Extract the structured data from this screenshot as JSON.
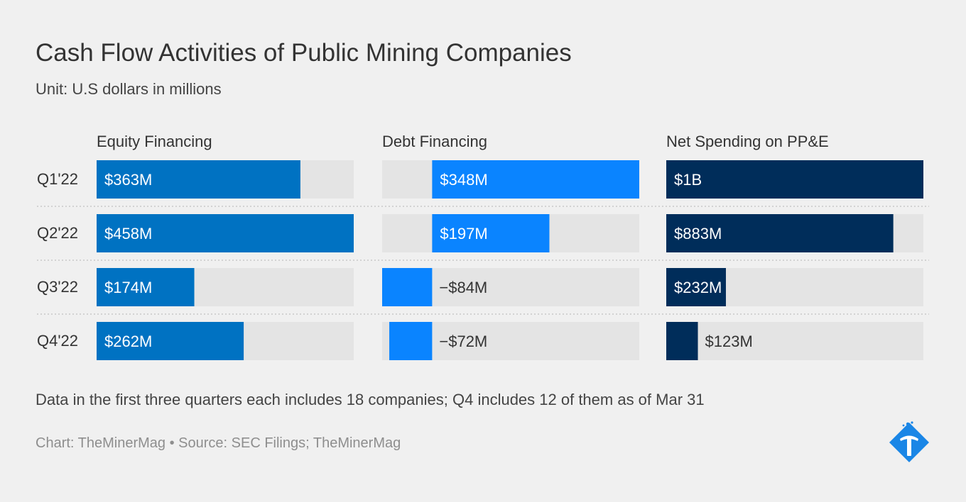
{
  "header": {
    "title": "Cash Flow Activities of Public Mining Companies",
    "subtitle": "Unit: U.S dollars in millions"
  },
  "footer": {
    "note": "Data in the first three quarters each includes 18 companies; Q4 includes 12 of them as of Mar 31",
    "credit": "Chart: TheMinerMag • Source: SEC Filings; TheMinerMag"
  },
  "logo_icon": "pickaxe-diamond-logo-icon",
  "chart_data": {
    "type": "bar",
    "orientation": "horizontal",
    "categories": [
      "Q1'22",
      "Q2'22",
      "Q3'22",
      "Q4'22"
    ],
    "unit": "U.S dollars in millions",
    "panels": [
      {
        "name": "Equity Financing",
        "color": "#0072c2",
        "values": [
          363,
          458,
          174,
          262
        ],
        "labels": [
          "$363M",
          "$458M",
          "$174M",
          "$262M"
        ],
        "xlim": [
          0,
          458
        ]
      },
      {
        "name": "Debt Financing",
        "color": "#0a84ff",
        "values": [
          348,
          197,
          -84,
          -72
        ],
        "labels": [
          "$348M",
          "$197M",
          "−$84M",
          "−$72M"
        ],
        "xlim": [
          -84,
          348
        ]
      },
      {
        "name": "Net Spending on PP&E",
        "color": "#002d5a",
        "values": [
          1000,
          883,
          232,
          123
        ],
        "labels": [
          "$1B",
          "$883M",
          "$232M",
          "$123M"
        ],
        "xlim": [
          0,
          1000
        ]
      }
    ],
    "track_color": "#e4e4e4",
    "grid": false
  }
}
